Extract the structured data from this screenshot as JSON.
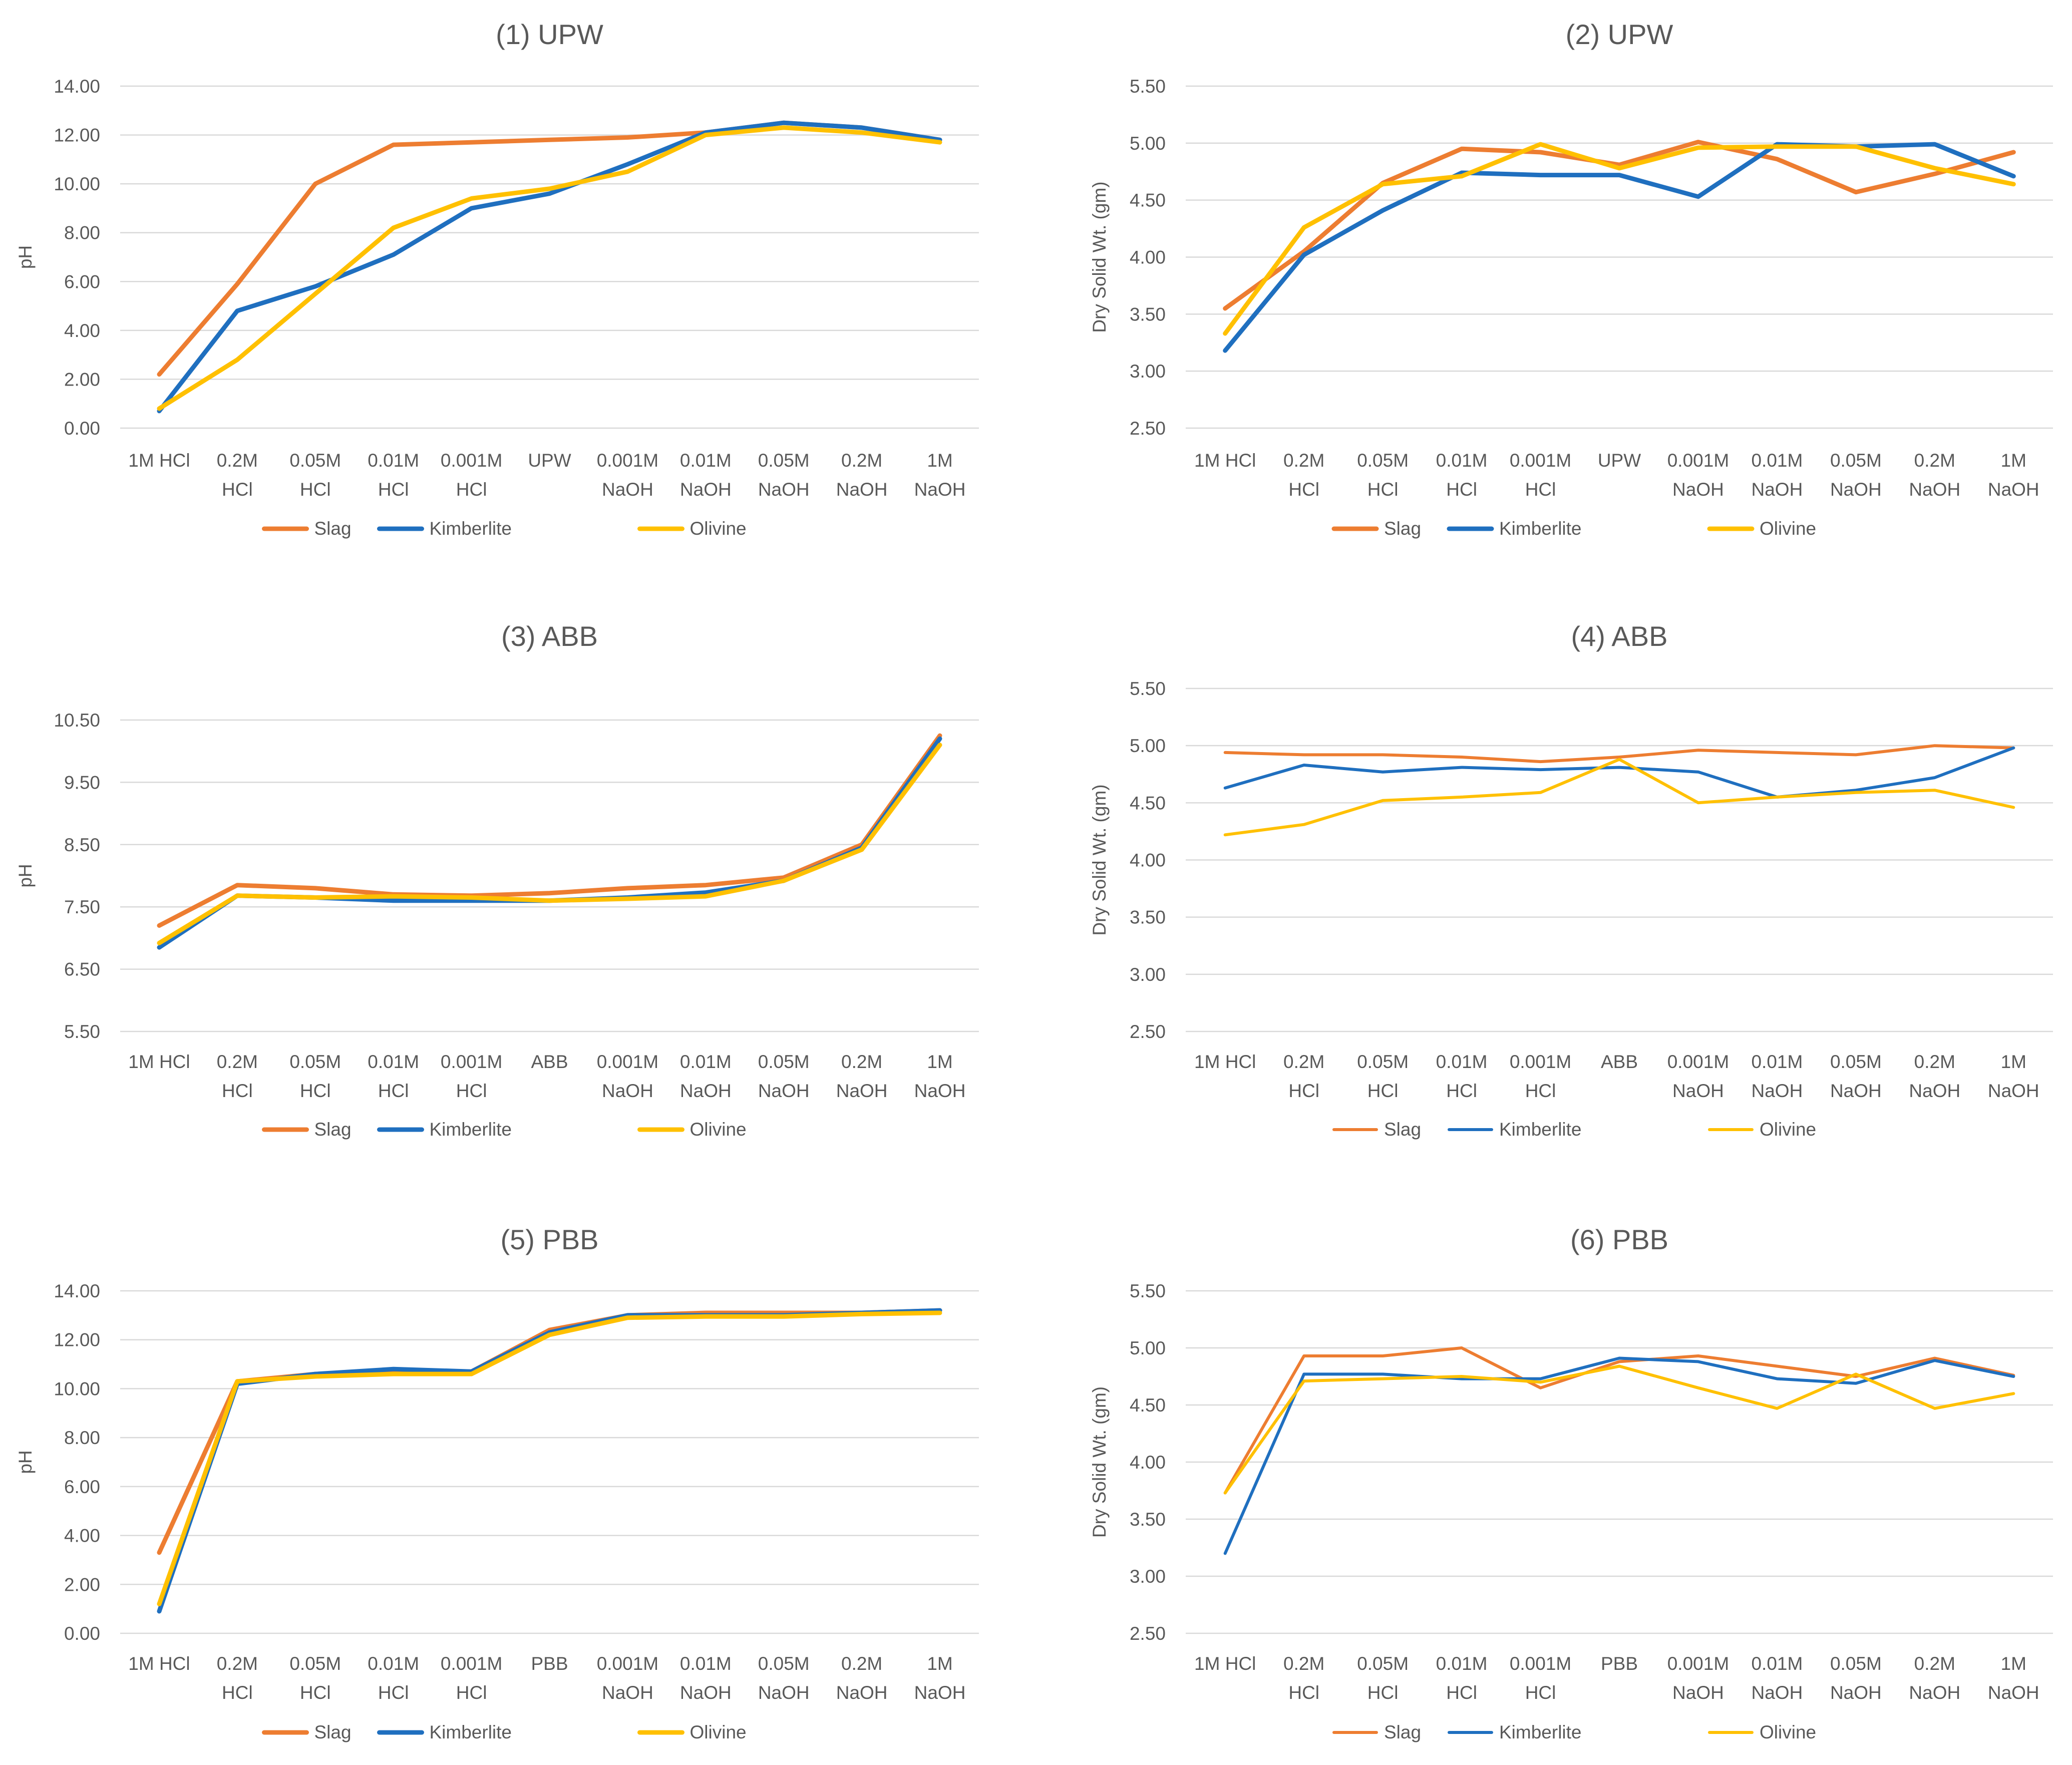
{
  "colors": {
    "Slag": "#ED7D31",
    "Kimberlite": "#1F6FBF",
    "Olivine": "#FFC000"
  },
  "chart_data": [
    {
      "type": "line",
      "title": "(1) UPW",
      "ylabel": "pH",
      "xlabel": "",
      "ylim": [
        0,
        14
      ],
      "yticks": [
        "0.00",
        "2.00",
        "4.00",
        "6.00",
        "8.00",
        "10.00",
        "12.00",
        "14.00"
      ],
      "categories": [
        [
          "1M HCl"
        ],
        [
          "0.2M",
          "HCl"
        ],
        [
          "0.05M",
          "HCl"
        ],
        [
          "0.01M",
          "HCl"
        ],
        [
          "0.001M",
          "HCl"
        ],
        [
          "UPW"
        ],
        [
          "0.001M",
          "NaOH"
        ],
        [
          "0.01M",
          "NaOH"
        ],
        [
          "0.05M",
          "NaOH"
        ],
        [
          "0.2M",
          "NaOH"
        ],
        [
          "1M",
          "NaOH"
        ]
      ],
      "series": [
        {
          "name": "Slag",
          "values": [
            2.2,
            5.9,
            10.0,
            11.6,
            11.7,
            11.8,
            11.9,
            12.1,
            12.5,
            12.3,
            11.8
          ]
        },
        {
          "name": "Kimberlite",
          "values": [
            0.7,
            4.8,
            5.8,
            7.1,
            9.0,
            9.6,
            10.8,
            12.1,
            12.5,
            12.3,
            11.8
          ]
        },
        {
          "name": "Olivine",
          "values": [
            0.8,
            2.8,
            5.5,
            8.2,
            9.4,
            9.8,
            10.5,
            12.0,
            12.3,
            12.1,
            11.7
          ]
        }
      ],
      "legend": {
        "position": "bottom",
        "style": "thick"
      }
    },
    {
      "type": "line",
      "title": "(2) UPW",
      "ylabel": "Dry Solid Wt. (gm)",
      "xlabel": "",
      "ylim": [
        2.5,
        5.5
      ],
      "yticks": [
        "2.50",
        "3.00",
        "3.50",
        "4.00",
        "4.50",
        "5.00",
        "5.50"
      ],
      "categories": [
        [
          "1M HCl"
        ],
        [
          "0.2M",
          "HCl"
        ],
        [
          "0.05M",
          "HCl"
        ],
        [
          "0.01M",
          "HCl"
        ],
        [
          "0.001M",
          "HCl"
        ],
        [
          "UPW"
        ],
        [
          "0.001M",
          "NaOH"
        ],
        [
          "0.01M",
          "NaOH"
        ],
        [
          "0.05M",
          "NaOH"
        ],
        [
          "0.2M",
          "NaOH"
        ],
        [
          "1M",
          "NaOH"
        ]
      ],
      "series": [
        {
          "name": "Slag",
          "values": [
            3.55,
            4.05,
            4.65,
            4.95,
            4.92,
            4.81,
            5.01,
            4.86,
            4.57,
            4.73,
            4.92
          ]
        },
        {
          "name": "Kimberlite",
          "values": [
            3.18,
            4.02,
            4.41,
            4.74,
            4.72,
            4.72,
            4.53,
            4.99,
            4.97,
            4.99,
            4.71
          ]
        },
        {
          "name": "Olivine",
          "values": [
            3.33,
            4.26,
            4.64,
            4.71,
            4.99,
            4.78,
            4.96,
            4.97,
            4.97,
            4.78,
            4.64
          ]
        }
      ],
      "legend": {
        "position": "bottom",
        "style": "thick"
      }
    },
    {
      "type": "line",
      "title": "(3) ABB",
      "ylabel": "pH",
      "xlabel": "",
      "ylim": [
        5.5,
        10.5
      ],
      "yticks": [
        "5.50",
        "6.50",
        "7.50",
        "8.50",
        "9.50",
        "10.50"
      ],
      "categories": [
        [
          "1M HCl"
        ],
        [
          "0.2M",
          "HCl"
        ],
        [
          "0.05M",
          "HCl"
        ],
        [
          "0.01M",
          "HCl"
        ],
        [
          "0.001M",
          "HCl"
        ],
        [
          "ABB"
        ],
        [
          "0.001M",
          "NaOH"
        ],
        [
          "0.01M",
          "NaOH"
        ],
        [
          "0.05M",
          "NaOH"
        ],
        [
          "0.2M",
          "NaOH"
        ],
        [
          "1M",
          "NaOH"
        ]
      ],
      "series": [
        {
          "name": "Slag",
          "values": [
            7.2,
            7.85,
            7.8,
            7.7,
            7.68,
            7.72,
            7.8,
            7.85,
            7.97,
            8.5,
            10.25
          ]
        },
        {
          "name": "Kimberlite",
          "values": [
            6.85,
            7.68,
            7.65,
            7.6,
            7.6,
            7.6,
            7.65,
            7.73,
            7.92,
            8.45,
            10.2
          ]
        },
        {
          "name": "Olivine",
          "values": [
            6.92,
            7.68,
            7.65,
            7.67,
            7.65,
            7.6,
            7.63,
            7.67,
            7.92,
            8.42,
            10.1
          ]
        }
      ],
      "legend": {
        "position": "bottom",
        "style": "thick"
      }
    },
    {
      "type": "line",
      "title": "(4) ABB",
      "ylabel": "Dry Solid Wt. (gm)",
      "xlabel": "",
      "ylim": [
        2.5,
        5.5
      ],
      "yticks": [
        "2.50",
        "3.00",
        "3.50",
        "4.00",
        "4.50",
        "5.00",
        "5.50"
      ],
      "categories": [
        [
          "1M HCl"
        ],
        [
          "0.2M",
          "HCl"
        ],
        [
          "0.05M",
          "HCl"
        ],
        [
          "0.01M",
          "HCl"
        ],
        [
          "0.001M",
          "HCl"
        ],
        [
          "ABB"
        ],
        [
          "0.001M",
          "NaOH"
        ],
        [
          "0.01M",
          "NaOH"
        ],
        [
          "0.05M",
          "NaOH"
        ],
        [
          "0.2M",
          "NaOH"
        ],
        [
          "1M",
          "NaOH"
        ]
      ],
      "series": [
        {
          "name": "Slag",
          "values": [
            4.94,
            4.92,
            4.92,
            4.9,
            4.86,
            4.9,
            4.96,
            4.94,
            4.92,
            5.0,
            4.98
          ]
        },
        {
          "name": "Kimberlite",
          "values": [
            4.63,
            4.83,
            4.77,
            4.81,
            4.79,
            4.81,
            4.77,
            4.55,
            4.61,
            4.72,
            4.98
          ]
        },
        {
          "name": "Olivine",
          "values": [
            4.22,
            4.31,
            4.52,
            4.55,
            4.59,
            4.88,
            4.5,
            4.55,
            4.59,
            4.61,
            4.46
          ]
        }
      ],
      "legend": {
        "position": "bottom",
        "style": "thin"
      }
    },
    {
      "type": "line",
      "title": "(5) PBB",
      "ylabel": "pH",
      "xlabel": "",
      "ylim": [
        0,
        14
      ],
      "yticks": [
        "0.00",
        "2.00",
        "4.00",
        "6.00",
        "8.00",
        "10.00",
        "12.00",
        "14.00"
      ],
      "categories": [
        [
          "1M HCl"
        ],
        [
          "0.2M",
          "HCl"
        ],
        [
          "0.05M",
          "HCl"
        ],
        [
          "0.01M",
          "HCl"
        ],
        [
          "0.001M",
          "HCl"
        ],
        [
          "PBB"
        ],
        [
          "0.001M",
          "NaOH"
        ],
        [
          "0.01M",
          "NaOH"
        ],
        [
          "0.05M",
          "NaOH"
        ],
        [
          "0.2M",
          "NaOH"
        ],
        [
          "1M",
          "NaOH"
        ]
      ],
      "series": [
        {
          "name": "Slag",
          "values": [
            3.3,
            10.3,
            10.6,
            10.7,
            10.7,
            12.4,
            13.0,
            13.1,
            13.1,
            13.1,
            13.2
          ]
        },
        {
          "name": "Kimberlite",
          "values": [
            0.9,
            10.2,
            10.6,
            10.8,
            10.7,
            12.3,
            13.0,
            13.0,
            13.0,
            13.1,
            13.2
          ]
        },
        {
          "name": "Olivine",
          "values": [
            1.2,
            10.3,
            10.5,
            10.6,
            10.6,
            12.2,
            12.9,
            12.95,
            12.95,
            13.05,
            13.1
          ]
        }
      ],
      "legend": {
        "position": "bottom",
        "style": "thick"
      }
    },
    {
      "type": "line",
      "title": "(6) PBB",
      "ylabel": "Dry Solid Wt. (gm)",
      "xlabel": "",
      "ylim": [
        2.5,
        5.5
      ],
      "yticks": [
        "2.50",
        "3.00",
        "3.50",
        "4.00",
        "4.50",
        "5.00",
        "5.50"
      ],
      "categories": [
        [
          "1M HCl"
        ],
        [
          "0.2M",
          "HCl"
        ],
        [
          "0.05M",
          "HCl"
        ],
        [
          "0.01M",
          "HCl"
        ],
        [
          "0.001M",
          "HCl"
        ],
        [
          "PBB"
        ],
        [
          "0.001M",
          "NaOH"
        ],
        [
          "0.01M",
          "NaOH"
        ],
        [
          "0.05M",
          "NaOH"
        ],
        [
          "0.2M",
          "NaOH"
        ],
        [
          "1M",
          "NaOH"
        ]
      ],
      "series": [
        {
          "name": "Slag",
          "values": [
            3.73,
            4.93,
            4.93,
            5.0,
            4.65,
            4.88,
            4.93,
            4.84,
            4.75,
            4.91,
            4.76
          ]
        },
        {
          "name": "Kimberlite",
          "values": [
            3.2,
            4.77,
            4.77,
            4.73,
            4.73,
            4.91,
            4.88,
            4.73,
            4.69,
            4.89,
            4.75
          ]
        },
        {
          "name": "Olivine",
          "values": [
            3.73,
            4.71,
            4.73,
            4.75,
            4.7,
            4.84,
            4.65,
            4.47,
            4.77,
            4.47,
            4.6
          ]
        }
      ],
      "legend": {
        "position": "bottom",
        "style": "thin"
      }
    }
  ]
}
